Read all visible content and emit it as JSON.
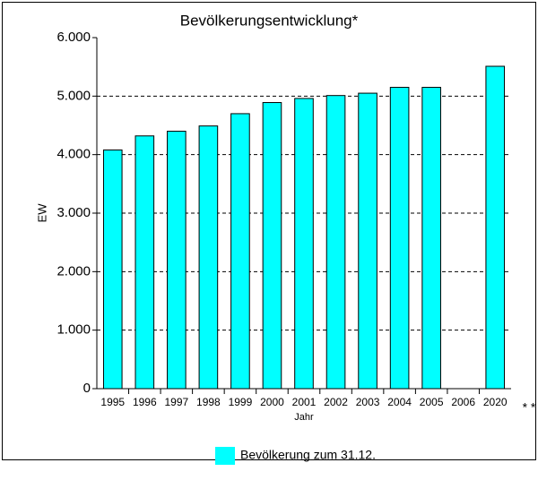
{
  "chart_data": {
    "type": "bar",
    "title": "Bevölkerungsentwicklung*",
    "categories": [
      "1995",
      "1996",
      "1997",
      "1998",
      "1999",
      "2000",
      "2001",
      "2002",
      "2003",
      "2004",
      "2005",
      "2006",
      "2020"
    ],
    "series": [
      {
        "name": "Bevölkerung zum 31.12.",
        "color": "#00ffff",
        "values": [
          4080,
          4320,
          4400,
          4490,
          4700,
          4890,
          4960,
          5010,
          5050,
          5150,
          5150,
          null,
          5510
        ]
      }
    ],
    "ylim": [
      0,
      6000
    ],
    "yticks": [
      0,
      {
        "value": 1000,
        "label": "1.000"
      },
      {
        "value": 2000,
        "label": "2.000"
      },
      {
        "value": 3000,
        "label": "3.000"
      },
      {
        "value": 4000,
        "label": "4.000"
      },
      {
        "value": 5000,
        "label": "5.000"
      },
      {
        "value": 6000,
        "label": "6.000"
      }
    ],
    "ylabel": "EW",
    "xlabel": "Jahr",
    "annotation": "* *",
    "grid": true,
    "legend": "bottom"
  }
}
